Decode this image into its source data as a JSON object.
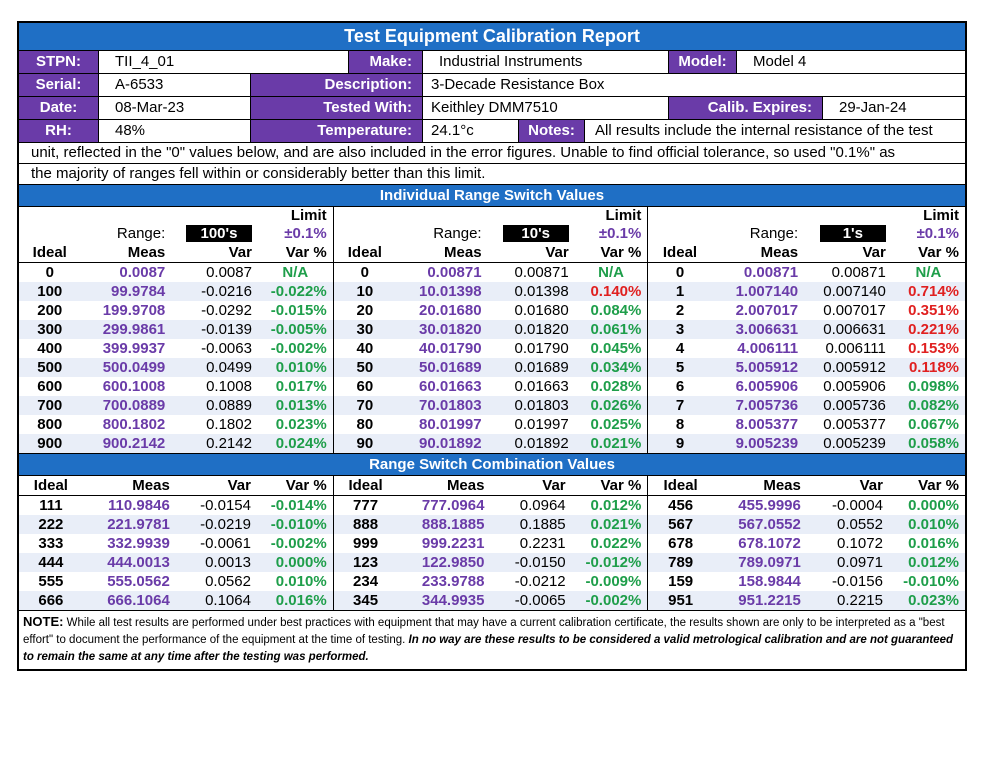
{
  "title": "Test Equipment Calibration Report",
  "info": {
    "stpn_label": "STPN:",
    "stpn": "TII_4_01",
    "make_label": "Make:",
    "make": "Industrial Instruments",
    "model_label": "Model:",
    "model": "Model 4",
    "serial_label": "Serial:",
    "serial": "A-6533",
    "description_label": "Description:",
    "description": "3-Decade Resistance Box",
    "date_label": "Date:",
    "date": "08-Mar-23",
    "tested_with_label": "Tested With:",
    "tested_with": "Keithley DMM7510",
    "calib_expires_label": "Calib. Expires:",
    "calib_expires": "29-Jan-24",
    "rh_label": "RH:",
    "rh": "48%",
    "temperature_label": "Temperature:",
    "temperature": "24.1°c",
    "notes_label": "Notes:",
    "notes_line1": "All results include the internal resistance of the test",
    "notes_line2": "unit, reflected in the \"0\" values below, and are also included in the error figures. Unable to find official tolerance, so used \"0.1%\" as",
    "notes_line3": "the majority of ranges fell within or considerably better than this limit."
  },
  "individual": {
    "title": "Individual Range Switch Values",
    "limit_label": "Limit",
    "range_label": "Range:",
    "tolerance": "±0.1%",
    "headers": [
      "Ideal",
      "Meas",
      "Var",
      "Var %"
    ],
    "colors": {
      "good": "#1e9e4a",
      "bad": "#e02020",
      "na": "#1e9e4a"
    },
    "tables": [
      {
        "range": "100's",
        "rows": [
          [
            "0",
            "0.0087",
            "0.0087",
            "N/A",
            "na"
          ],
          [
            "100",
            "99.9784",
            "-0.0216",
            "-0.022%",
            "good"
          ],
          [
            "200",
            "199.9708",
            "-0.0292",
            "-0.015%",
            "good"
          ],
          [
            "300",
            "299.9861",
            "-0.0139",
            "-0.005%",
            "good"
          ],
          [
            "400",
            "399.9937",
            "-0.0063",
            "-0.002%",
            "good"
          ],
          [
            "500",
            "500.0499",
            "0.0499",
            "0.010%",
            "good"
          ],
          [
            "600",
            "600.1008",
            "0.1008",
            "0.017%",
            "good"
          ],
          [
            "700",
            "700.0889",
            "0.0889",
            "0.013%",
            "good"
          ],
          [
            "800",
            "800.1802",
            "0.1802",
            "0.023%",
            "good"
          ],
          [
            "900",
            "900.2142",
            "0.2142",
            "0.024%",
            "good"
          ]
        ]
      },
      {
        "range": "10's",
        "rows": [
          [
            "0",
            "0.00871",
            "0.00871",
            "N/A",
            "na"
          ],
          [
            "10",
            "10.01398",
            "0.01398",
            "0.140%",
            "bad"
          ],
          [
            "20",
            "20.01680",
            "0.01680",
            "0.084%",
            "good"
          ],
          [
            "30",
            "30.01820",
            "0.01820",
            "0.061%",
            "good"
          ],
          [
            "40",
            "40.01790",
            "0.01790",
            "0.045%",
            "good"
          ],
          [
            "50",
            "50.01689",
            "0.01689",
            "0.034%",
            "good"
          ],
          [
            "60",
            "60.01663",
            "0.01663",
            "0.028%",
            "good"
          ],
          [
            "70",
            "70.01803",
            "0.01803",
            "0.026%",
            "good"
          ],
          [
            "80",
            "80.01997",
            "0.01997",
            "0.025%",
            "good"
          ],
          [
            "90",
            "90.01892",
            "0.01892",
            "0.021%",
            "good"
          ]
        ]
      },
      {
        "range": "1's",
        "rows": [
          [
            "0",
            "0.00871",
            "0.00871",
            "N/A",
            "na"
          ],
          [
            "1",
            "1.007140",
            "0.007140",
            "0.714%",
            "bad"
          ],
          [
            "2",
            "2.007017",
            "0.007017",
            "0.351%",
            "bad"
          ],
          [
            "3",
            "3.006631",
            "0.006631",
            "0.221%",
            "bad"
          ],
          [
            "4",
            "4.006111",
            "0.006111",
            "0.153%",
            "bad"
          ],
          [
            "5",
            "5.005912",
            "0.005912",
            "0.118%",
            "bad"
          ],
          [
            "6",
            "6.005906",
            "0.005906",
            "0.098%",
            "good"
          ],
          [
            "7",
            "7.005736",
            "0.005736",
            "0.082%",
            "good"
          ],
          [
            "8",
            "8.005377",
            "0.005377",
            "0.067%",
            "good"
          ],
          [
            "9",
            "9.005239",
            "0.005239",
            "0.058%",
            "good"
          ]
        ]
      }
    ]
  },
  "combination": {
    "title": "Range Switch Combination Values",
    "headers": [
      "Ideal",
      "Meas",
      "Var",
      "Var %"
    ],
    "tables": [
      {
        "rows": [
          [
            "111",
            "110.9846",
            "-0.0154",
            "-0.014%",
            "good"
          ],
          [
            "222",
            "221.9781",
            "-0.0219",
            "-0.010%",
            "good"
          ],
          [
            "333",
            "332.9939",
            "-0.0061",
            "-0.002%",
            "good"
          ],
          [
            "444",
            "444.0013",
            "0.0013",
            "0.000%",
            "good"
          ],
          [
            "555",
            "555.0562",
            "0.0562",
            "0.010%",
            "good"
          ],
          [
            "666",
            "666.1064",
            "0.1064",
            "0.016%",
            "good"
          ]
        ]
      },
      {
        "rows": [
          [
            "777",
            "777.0964",
            "0.0964",
            "0.012%",
            "good"
          ],
          [
            "888",
            "888.1885",
            "0.1885",
            "0.021%",
            "good"
          ],
          [
            "999",
            "999.2231",
            "0.2231",
            "0.022%",
            "good"
          ],
          [
            "123",
            "122.9850",
            "-0.0150",
            "-0.012%",
            "good"
          ],
          [
            "234",
            "233.9788",
            "-0.0212",
            "-0.009%",
            "good"
          ],
          [
            "345",
            "344.9935",
            "-0.0065",
            "-0.002%",
            "good"
          ]
        ]
      },
      {
        "rows": [
          [
            "456",
            "455.9996",
            "-0.0004",
            "0.000%",
            "good"
          ],
          [
            "567",
            "567.0552",
            "0.0552",
            "0.010%",
            "good"
          ],
          [
            "678",
            "678.1072",
            "0.1072",
            "0.016%",
            "good"
          ],
          [
            "789",
            "789.0971",
            "0.0971",
            "0.012%",
            "good"
          ],
          [
            "159",
            "158.9844",
            "-0.0156",
            "-0.010%",
            "good"
          ],
          [
            "951",
            "951.2215",
            "0.2215",
            "0.023%",
            "good"
          ]
        ]
      }
    ]
  },
  "note": {
    "label": "NOTE:",
    "text": "While all test results are performed under best practices with equipment that may have a current calibration certificate, the results shown are only to be interpreted as a \"best effort\" to document the performance of the equipment at the time of testing.",
    "emphasis": "In no way are these results to be considered a valid metrological calibration and are not guaranteed to remain the same at any time after the testing was performed."
  }
}
